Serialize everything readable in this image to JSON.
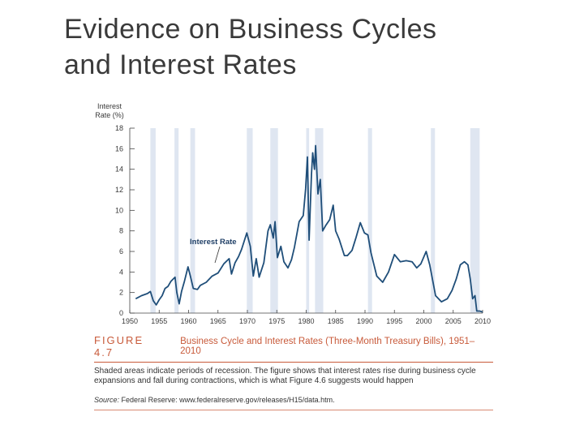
{
  "slide": {
    "title_line1": "Evidence on Business Cycles",
    "title_line2": "and Interest Rates"
  },
  "caption": {
    "figure_label": "FIGURE 4.7",
    "figure_title": "Business Cycle and Interest Rates (Three-Month Treasury Bills), 1951–2010",
    "description": "Shaded areas indicate periods of recession. The figure shows that interest rates rise during business cycle expansions and fall during contractions, which is what Figure 4.6 suggests would happen",
    "source_prefix": "Source:",
    "source_text": "Federal Reserve: www.federalreserve.gov/releases/H15/data.htm."
  },
  "colors": {
    "line": "#1f4e79",
    "recession": "#dfe6f1",
    "accent": "#c85a3a"
  },
  "chart_data": {
    "type": "line",
    "title": "",
    "xlabel": "",
    "ylabel": "Interest Rate (%)",
    "ylabel_line1": "Interest",
    "ylabel_line2": "Rate (%)",
    "xlim": [
      1950,
      2010
    ],
    "ylim": [
      0,
      18
    ],
    "yticks": [
      0,
      2,
      4,
      6,
      8,
      10,
      12,
      14,
      16,
      18
    ],
    "xticks": [
      1950,
      1955,
      1960,
      1965,
      1970,
      1975,
      1980,
      1985,
      1990,
      1995,
      2000,
      2005,
      2010
    ],
    "annotation": "Interest Rate",
    "recessions": [
      [
        1953.5,
        1954.4
      ],
      [
        1957.6,
        1958.3
      ],
      [
        1960.3,
        1961.1
      ],
      [
        1969.9,
        1970.9
      ],
      [
        1973.9,
        1975.2
      ],
      [
        1980.0,
        1980.5
      ],
      [
        1981.5,
        1982.9
      ],
      [
        1990.5,
        1991.2
      ],
      [
        2001.2,
        2001.9
      ],
      [
        2007.9,
        2009.5
      ]
    ],
    "series": [
      {
        "values": [
          [
            1951.0,
            1.4
          ],
          [
            1952.0,
            1.7
          ],
          [
            1953.0,
            1.9
          ],
          [
            1953.5,
            2.1
          ],
          [
            1954.0,
            1.2
          ],
          [
            1954.5,
            0.8
          ],
          [
            1955.0,
            1.3
          ],
          [
            1955.5,
            1.7
          ],
          [
            1956.0,
            2.4
          ],
          [
            1956.5,
            2.6
          ],
          [
            1957.0,
            3.1
          ],
          [
            1957.7,
            3.5
          ],
          [
            1958.0,
            2.0
          ],
          [
            1958.4,
            0.9
          ],
          [
            1958.8,
            2.1
          ],
          [
            1959.3,
            3.1
          ],
          [
            1959.9,
            4.5
          ],
          [
            1960.3,
            3.6
          ],
          [
            1960.8,
            2.4
          ],
          [
            1961.5,
            2.3
          ],
          [
            1962.0,
            2.7
          ],
          [
            1963.0,
            3.0
          ],
          [
            1964.0,
            3.6
          ],
          [
            1965.0,
            3.9
          ],
          [
            1966.0,
            4.8
          ],
          [
            1966.9,
            5.3
          ],
          [
            1967.3,
            3.8
          ],
          [
            1967.9,
            4.9
          ],
          [
            1968.5,
            5.5
          ],
          [
            1969.0,
            6.2
          ],
          [
            1969.9,
            7.8
          ],
          [
            1970.5,
            6.5
          ],
          [
            1971.0,
            3.6
          ],
          [
            1971.5,
            5.3
          ],
          [
            1972.0,
            3.5
          ],
          [
            1972.8,
            4.9
          ],
          [
            1973.5,
            8.0
          ],
          [
            1973.9,
            8.6
          ],
          [
            1974.4,
            7.3
          ],
          [
            1974.7,
            8.9
          ],
          [
            1975.1,
            5.4
          ],
          [
            1975.7,
            6.5
          ],
          [
            1976.2,
            5.0
          ],
          [
            1976.9,
            4.4
          ],
          [
            1977.5,
            5.2
          ],
          [
            1978.0,
            6.4
          ],
          [
            1978.8,
            8.9
          ],
          [
            1979.5,
            9.5
          ],
          [
            1979.9,
            12.1
          ],
          [
            1980.2,
            15.2
          ],
          [
            1980.5,
            7.1
          ],
          [
            1980.9,
            13.5
          ],
          [
            1981.1,
            15.6
          ],
          [
            1981.4,
            14.0
          ],
          [
            1981.6,
            16.3
          ],
          [
            1982.0,
            11.6
          ],
          [
            1982.4,
            13.0
          ],
          [
            1982.8,
            8.0
          ],
          [
            1983.3,
            8.5
          ],
          [
            1984.0,
            9.1
          ],
          [
            1984.6,
            10.5
          ],
          [
            1985.0,
            8.0
          ],
          [
            1985.6,
            7.2
          ],
          [
            1986.5,
            5.6
          ],
          [
            1987.0,
            5.6
          ],
          [
            1987.8,
            6.1
          ],
          [
            1988.5,
            7.4
          ],
          [
            1989.2,
            8.8
          ],
          [
            1989.9,
            7.8
          ],
          [
            1990.5,
            7.6
          ],
          [
            1991.0,
            5.9
          ],
          [
            1992.0,
            3.6
          ],
          [
            1993.0,
            3.0
          ],
          [
            1994.0,
            4.0
          ],
          [
            1995.0,
            5.7
          ],
          [
            1996.0,
            5.0
          ],
          [
            1997.0,
            5.1
          ],
          [
            1998.0,
            5.0
          ],
          [
            1998.8,
            4.4
          ],
          [
            1999.5,
            4.8
          ],
          [
            2000.4,
            6.0
          ],
          [
            2001.0,
            4.7
          ],
          [
            2001.5,
            3.2
          ],
          [
            2002.0,
            1.7
          ],
          [
            2003.0,
            1.1
          ],
          [
            2004.0,
            1.4
          ],
          [
            2004.8,
            2.2
          ],
          [
            2005.5,
            3.3
          ],
          [
            2006.2,
            4.7
          ],
          [
            2006.9,
            5.0
          ],
          [
            2007.5,
            4.7
          ],
          [
            2007.9,
            3.3
          ],
          [
            2008.3,
            1.4
          ],
          [
            2008.7,
            1.7
          ],
          [
            2009.0,
            0.2
          ],
          [
            2009.5,
            0.2
          ],
          [
            2010.0,
            0.1
          ]
        ]
      }
    ]
  }
}
